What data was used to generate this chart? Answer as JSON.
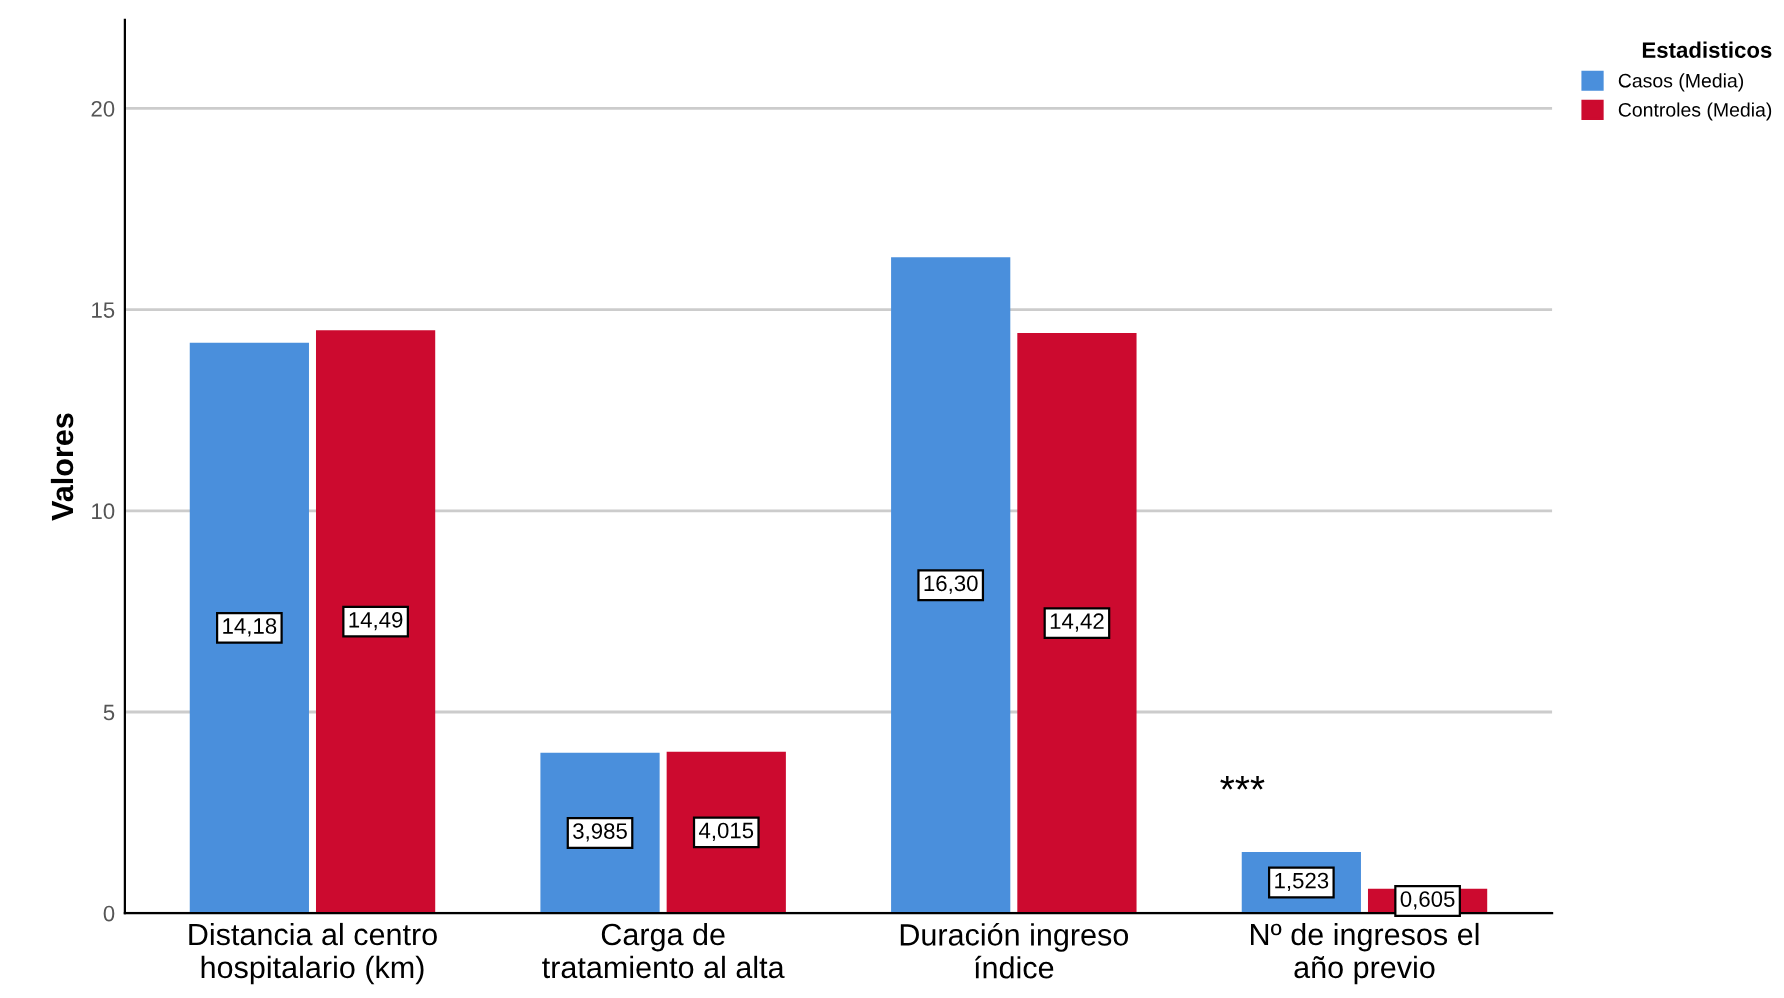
{
  "chart_data": {
    "type": "bar",
    "ylabel": "Valores",
    "legend_title": "Estadisticos",
    "categories": [
      "Distancia al centro\nhospitalario (km)",
      "Carga de\ntratamiento al alta",
      "Duración ingreso\níndice",
      "Nº de ingresos el\naño previo"
    ],
    "series": [
      {
        "name": "Casos (Media)",
        "color": "#4a8fdc",
        "values": [
          14.18,
          3.985,
          16.3,
          1.523
        ],
        "value_labels": [
          "14,18",
          "3,985",
          "16,30",
          "1,523"
        ]
      },
      {
        "name": "Controles (Media)",
        "color": "#cc0a2f",
        "values": [
          14.49,
          4.015,
          14.42,
          0.605
        ],
        "value_labels": [
          "14,49",
          "4,015",
          "14,42",
          "0,605"
        ]
      }
    ],
    "ylim": [
      0,
      22.2
    ],
    "yticks": [
      0,
      5,
      10,
      15,
      20
    ],
    "grid": "y",
    "legend": "top right",
    "annotations": [
      "***"
    ]
  }
}
